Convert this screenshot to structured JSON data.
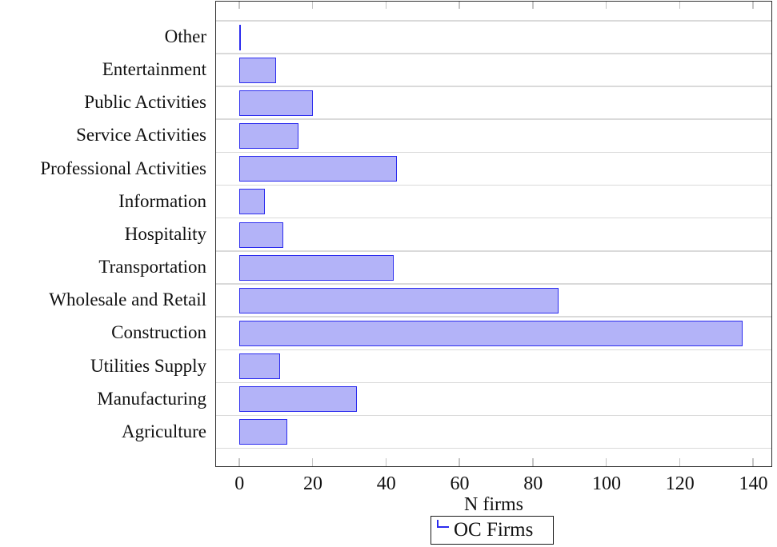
{
  "chart_data": {
    "type": "bar",
    "orientation": "horizontal",
    "title": "",
    "xlabel": "N firms",
    "ylabel": "",
    "categories": [
      "Other",
      "Entertainment",
      "Public Activities",
      "Service Activities",
      "Professional Activities",
      "Information",
      "Hospitality",
      "Transportation",
      "Wholesale and Retail",
      "Construction",
      "Utilities Supply",
      "Manufacturing",
      "Agriculture"
    ],
    "series": [
      {
        "name": "OC Firms",
        "values": [
          0,
          10,
          20,
          16,
          43,
          7,
          12,
          42,
          87,
          137,
          11,
          32,
          13
        ]
      }
    ],
    "x_ticks": [
      0,
      20,
      40,
      60,
      80,
      100,
      120,
      140
    ],
    "xlim": [
      -6.3,
      145
    ],
    "grid": "horizontal separators between category rows",
    "legend": {
      "labels": [
        "OC Firms"
      ],
      "position": "bottom-center, below x-axis label"
    },
    "colors": {
      "bar_fill": "#b3b3f8",
      "bar_border": "#2b2bee",
      "grid_line": "#dadada",
      "axis_frame": "#2e2e2e",
      "tick_mark": "#c4c4c4",
      "text": "#111111",
      "background": "#ffffff"
    }
  }
}
